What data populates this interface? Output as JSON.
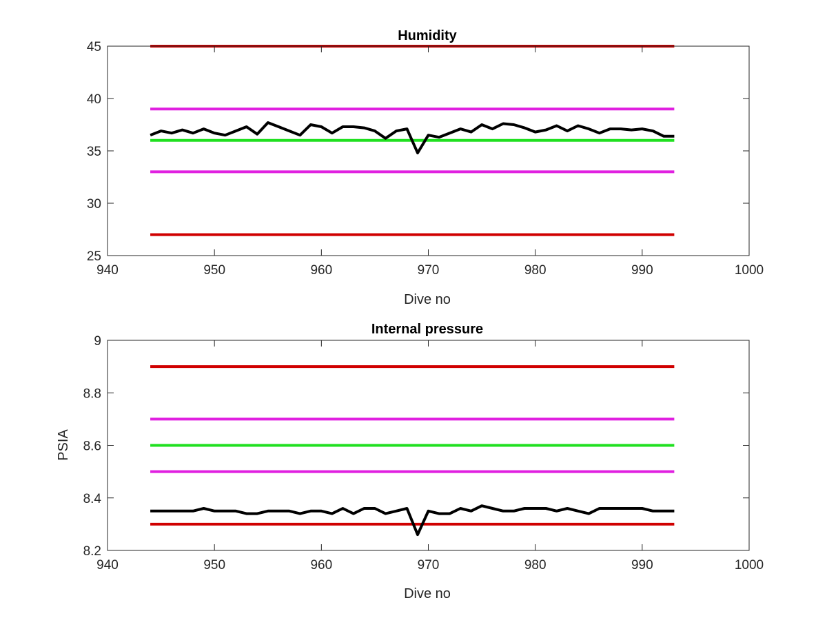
{
  "chart_data": [
    {
      "type": "line",
      "title": "Humidity",
      "xlabel": "Dive no",
      "ylabel": "",
      "xlim": [
        940,
        1000
      ],
      "ylim": [
        25,
        45
      ],
      "xticks": [
        940,
        950,
        960,
        970,
        980,
        990,
        1000
      ],
      "yticks": [
        25,
        30,
        35,
        40,
        45
      ],
      "x_range": [
        944,
        993
      ],
      "grid": false,
      "reference_lines": [
        {
          "y": 45,
          "color": "#d00000"
        },
        {
          "y": 39,
          "color": "#e020e0"
        },
        {
          "y": 36,
          "color": "#20e020"
        },
        {
          "y": 33,
          "color": "#e020e0"
        },
        {
          "y": 27,
          "color": "#d00000"
        }
      ],
      "series": [
        {
          "color": "#000000",
          "x": [
            944,
            945,
            946,
            947,
            948,
            949,
            950,
            951,
            952,
            953,
            954,
            955,
            956,
            957,
            958,
            959,
            960,
            961,
            962,
            963,
            964,
            965,
            966,
            967,
            968,
            969,
            970,
            971,
            972,
            973,
            974,
            975,
            976,
            977,
            978,
            979,
            980,
            981,
            982,
            983,
            984,
            985,
            986,
            987,
            988,
            989,
            990,
            991,
            992,
            993
          ],
          "values": [
            36.5,
            36.9,
            36.7,
            37.0,
            36.7,
            37.1,
            36.7,
            36.5,
            36.9,
            37.3,
            36.6,
            37.7,
            37.3,
            36.9,
            36.5,
            37.5,
            37.3,
            36.7,
            37.3,
            37.3,
            37.2,
            36.9,
            36.2,
            36.9,
            37.1,
            34.8,
            36.5,
            36.3,
            36.7,
            37.1,
            36.8,
            37.5,
            37.1,
            37.6,
            37.5,
            37.2,
            36.8,
            37.0,
            37.4,
            36.9,
            37.4,
            37.1,
            36.7,
            37.1,
            37.1,
            37.0,
            37.1,
            36.9,
            36.4,
            36.4
          ]
        }
      ]
    },
    {
      "type": "line",
      "title": "Internal pressure",
      "xlabel": "Dive no",
      "ylabel": "PSIA",
      "xlim": [
        940,
        1000
      ],
      "ylim": [
        8.2,
        9
      ],
      "xticks": [
        940,
        950,
        960,
        970,
        980,
        990,
        1000
      ],
      "yticks": [
        8.2,
        8.4,
        8.6,
        8.8,
        9
      ],
      "ytick_labels": [
        "8.2",
        "8.4",
        "8.6",
        "8.8",
        "9"
      ],
      "x_range": [
        944,
        993
      ],
      "grid": false,
      "reference_lines": [
        {
          "y": 8.9,
          "color": "#d00000"
        },
        {
          "y": 8.7,
          "color": "#e020e0"
        },
        {
          "y": 8.6,
          "color": "#20e020"
        },
        {
          "y": 8.5,
          "color": "#e020e0"
        },
        {
          "y": 8.3,
          "color": "#d00000"
        }
      ],
      "series": [
        {
          "color": "#000000",
          "x": [
            944,
            945,
            946,
            947,
            948,
            949,
            950,
            951,
            952,
            953,
            954,
            955,
            956,
            957,
            958,
            959,
            960,
            961,
            962,
            963,
            964,
            965,
            966,
            967,
            968,
            969,
            970,
            971,
            972,
            973,
            974,
            975,
            976,
            977,
            978,
            979,
            980,
            981,
            982,
            983,
            984,
            985,
            986,
            987,
            988,
            989,
            990,
            991,
            992,
            993
          ],
          "values": [
            8.35,
            8.35,
            8.35,
            8.35,
            8.35,
            8.36,
            8.35,
            8.35,
            8.35,
            8.34,
            8.34,
            8.35,
            8.35,
            8.35,
            8.34,
            8.35,
            8.35,
            8.34,
            8.36,
            8.34,
            8.36,
            8.36,
            8.34,
            8.35,
            8.36,
            8.26,
            8.35,
            8.34,
            8.34,
            8.36,
            8.35,
            8.37,
            8.36,
            8.35,
            8.35,
            8.36,
            8.36,
            8.36,
            8.35,
            8.36,
            8.35,
            8.34,
            8.36,
            8.36,
            8.36,
            8.36,
            8.36,
            8.35,
            8.35,
            8.35
          ]
        }
      ]
    }
  ]
}
